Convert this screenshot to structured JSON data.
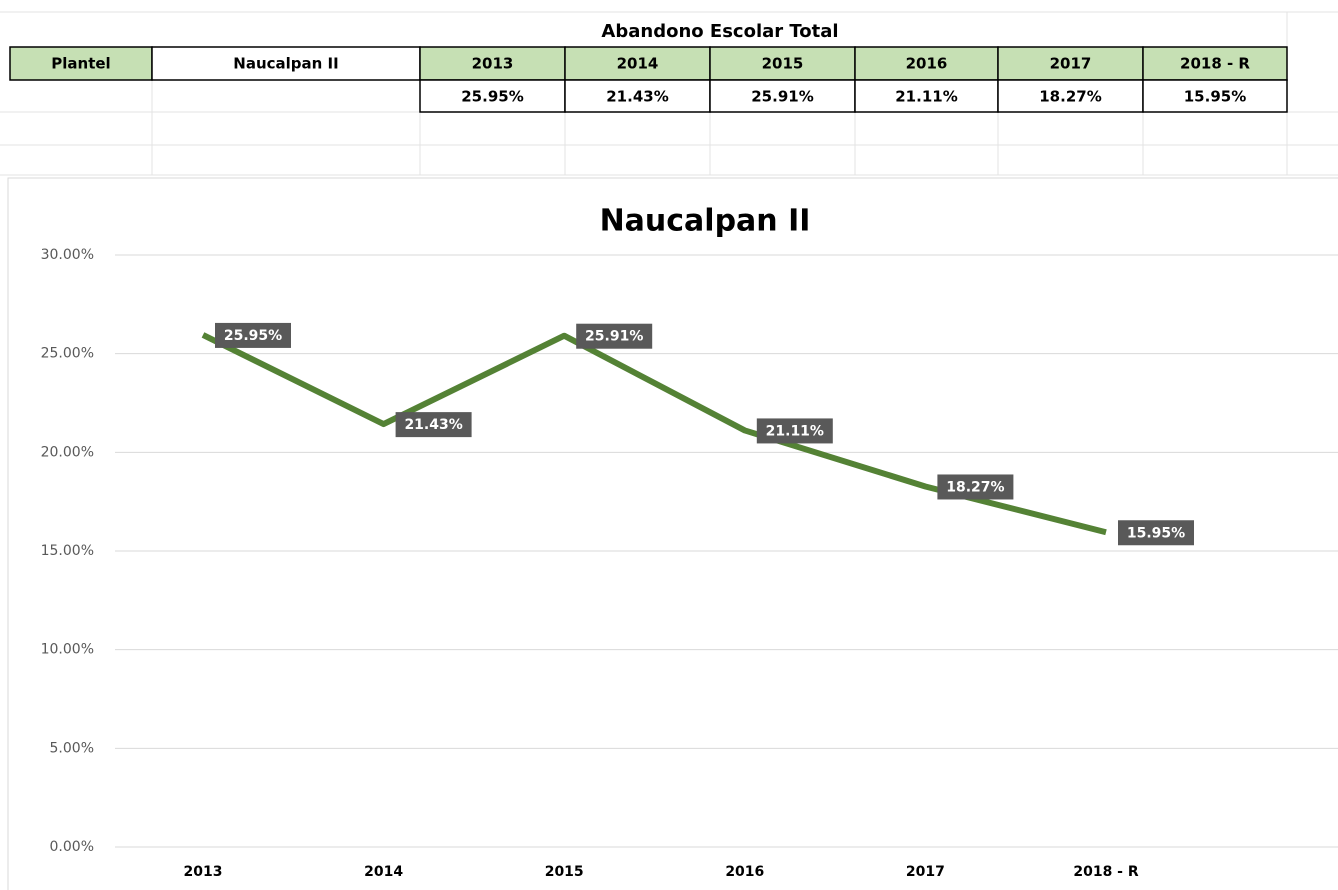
{
  "table": {
    "title": "Abandono Escolar Total",
    "header": [
      "Plantel",
      "Naucalpan II",
      "2013",
      "2014",
      "2015",
      "2016",
      "2017",
      "2018 - R"
    ],
    "row": [
      "25.95%",
      "21.43%",
      "25.91%",
      "21.11%",
      "18.27%",
      "15.95%"
    ]
  },
  "chart_data": {
    "type": "line",
    "title": "Naucalpan II",
    "categories": [
      "2013",
      "2014",
      "2015",
      "2016",
      "2017",
      "2018 - R"
    ],
    "values": [
      25.95,
      21.43,
      25.91,
      21.11,
      18.27,
      15.95
    ],
    "value_labels": [
      "25.95%",
      "21.43%",
      "25.91%",
      "21.11%",
      "18.27%",
      "15.95%"
    ],
    "color": "#548235",
    "ylim": [
      0,
      30
    ],
    "yticks": [
      {
        "value": 0,
        "label": "0.00%"
      },
      {
        "value": 5,
        "label": "5.00%"
      },
      {
        "value": 10,
        "label": "10.00%"
      },
      {
        "value": 15,
        "label": "15.00%"
      },
      {
        "value": 20,
        "label": "20.00%"
      },
      {
        "value": 25,
        "label": "25.00%"
      },
      {
        "value": 30,
        "label": "30.00%"
      }
    ],
    "grid": true
  }
}
